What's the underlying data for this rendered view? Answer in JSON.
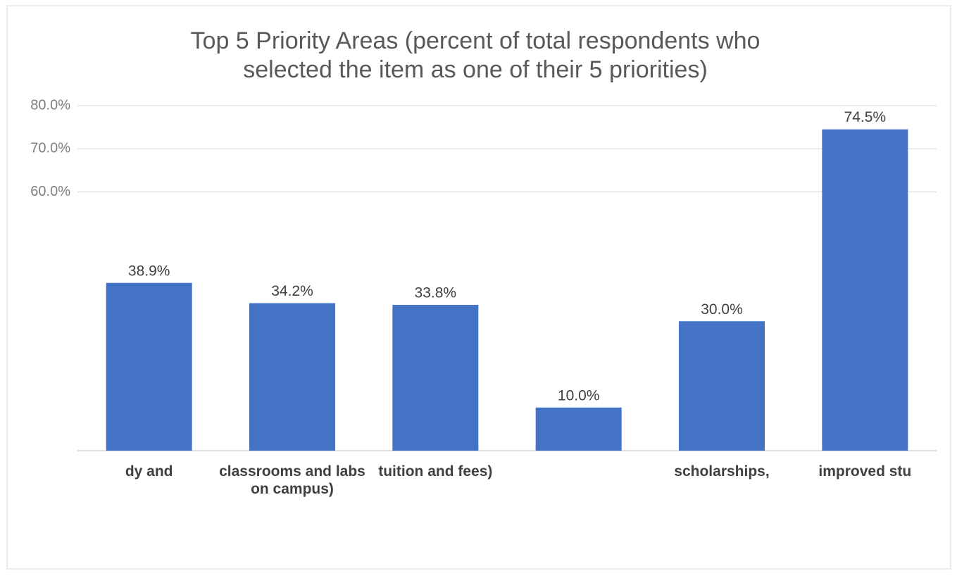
{
  "chart_data": {
    "type": "bar",
    "title": "Top 5 Priority Areas (percent of total respondents who selected the item as one of their 5 priorities)",
    "categories": [
      "dy and",
      "classrooms and labs on campus)",
      "tuition and fees)",
      null,
      "scholarships,",
      "improved stu"
    ],
    "values": [
      38.9,
      34.2,
      33.8,
      10.0,
      30.0,
      74.5
    ],
    "value_labels": [
      "38.9%",
      "34.2%",
      "33.8%",
      "10.0%",
      "30.0%",
      "74.5%"
    ],
    "color": "#4472c4",
    "ylim": [
      0,
      80
    ],
    "yticks": [
      {
        "value": 60,
        "label": "60.0%"
      },
      {
        "value": 70,
        "label": "70.0%"
      },
      {
        "value": 80,
        "label": "80.0%"
      }
    ],
    "grid": true
  }
}
